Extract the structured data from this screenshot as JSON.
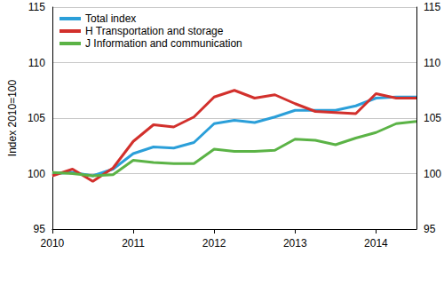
{
  "chart_data": {
    "type": "line",
    "y_label": "Index 2010=100",
    "categories": [
      "2010",
      null,
      null,
      null,
      "2011",
      null,
      null,
      null,
      "2012",
      null,
      null,
      null,
      "2013",
      null,
      null,
      null,
      "2014",
      null,
      null
    ],
    "series": [
      {
        "name": "Total index",
        "color": "#2b9fd9",
        "values": [
          100.0,
          100.1,
          99.8,
          100.4,
          101.8,
          102.4,
          102.3,
          102.8,
          104.5,
          104.8,
          104.6,
          105.1,
          105.7,
          105.7,
          105.7,
          106.1,
          106.8,
          106.9,
          106.9
        ]
      },
      {
        "name": "H Transportation and storage",
        "color": "#d2302c",
        "values": [
          99.8,
          100.4,
          99.3,
          100.5,
          102.9,
          104.4,
          104.2,
          105.1,
          106.9,
          107.5,
          106.8,
          107.1,
          106.3,
          105.6,
          105.5,
          105.4,
          107.2,
          106.8,
          106.8
        ]
      },
      {
        "name": "J Information and communication",
        "color": "#5bb346",
        "values": [
          100.1,
          100.0,
          99.8,
          99.9,
          101.2,
          101.0,
          100.9,
          100.9,
          102.2,
          102.0,
          102.0,
          102.1,
          103.1,
          103.0,
          102.6,
          103.2,
          103.7,
          104.5,
          104.7
        ]
      }
    ],
    "ylim": [
      95,
      115
    ],
    "yticks": [
      95,
      100,
      105,
      110,
      115
    ],
    "y2lim": [
      95,
      115
    ],
    "y2ticks": [
      95,
      100,
      105,
      110,
      115
    ],
    "grid": true,
    "legend": "top-left"
  }
}
